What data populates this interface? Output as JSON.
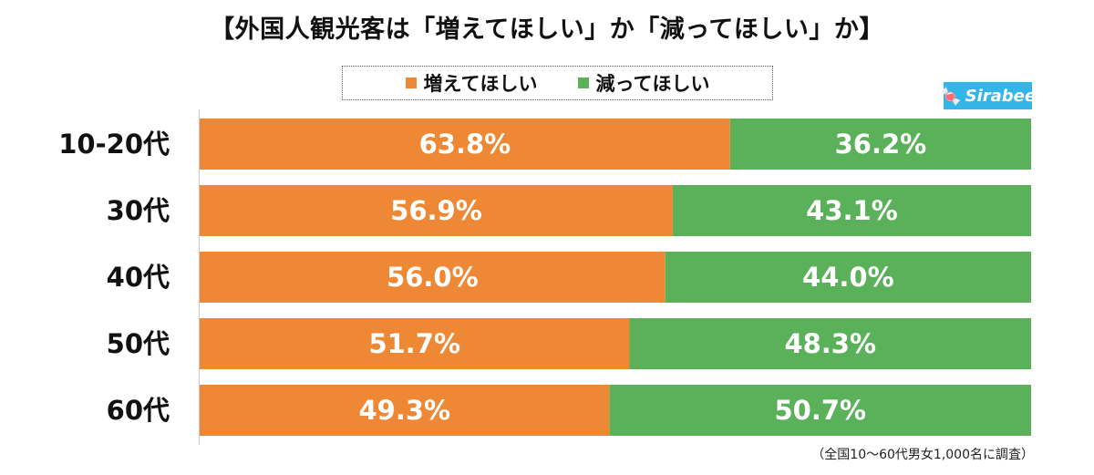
{
  "title": "【外国人観光客は「増えてほしい」か「減ってほしい」か】",
  "legend": {
    "series_a": "増えてほしい",
    "series_b": "減ってほしい"
  },
  "logo_text": "Sirabee",
  "note": "（全国10〜60代男女1,000名に調査）",
  "colors": {
    "series_a": "#ef8834",
    "series_b": "#5bb15a",
    "logo_bg": "#33b5e8"
  },
  "chart_data": {
    "type": "bar",
    "orientation": "horizontal",
    "stacked": true,
    "title": "【外国人観光客は「増えてほしい」か「減ってほしい」か】",
    "categories": [
      "10-20代",
      "30代",
      "40代",
      "50代",
      "60代"
    ],
    "series": [
      {
        "name": "増えてほしい",
        "values": [
          63.8,
          56.9,
          56.0,
          51.7,
          49.3
        ],
        "labels": [
          "63.8%",
          "56.9%",
          "56.0%",
          "51.7%",
          "49.3%"
        ]
      },
      {
        "name": "減ってほしい",
        "values": [
          36.2,
          43.1,
          44.0,
          48.3,
          50.7
        ],
        "labels": [
          "36.2%",
          "43.1%",
          "44.0%",
          "48.3%",
          "50.7%"
        ]
      }
    ],
    "xlim": [
      0,
      100
    ],
    "xlabel": "",
    "ylabel": "",
    "legend_position": "top"
  }
}
